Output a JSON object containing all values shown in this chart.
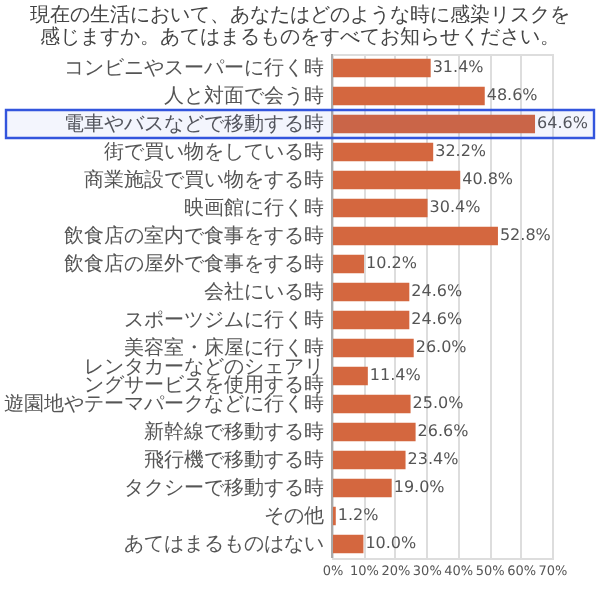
{
  "chart_data": {
    "type": "bar",
    "orientation": "horizontal",
    "title": "現在の生活において、あなたはどのような時に感染リスクを感じますか。あてはまるものをすべてお知らせください。",
    "categories": [
      "コンビニやスーパーに行く時",
      "人と対面で会う時",
      "電車やバスなどで移動する時",
      "街で買い物をしている時",
      "商業施設で買い物をする時",
      "映画館に行く時",
      "飲食店の室内で食事をする時",
      "飲食店の屋外で食事をする時",
      "会社にいる時",
      "スポーツジムに行く時",
      "美容室・床屋に行く時",
      "レンタカーなどのシェアリングサービスを使用する時",
      "遊園地やテーマパークなどに行く時",
      "新幹線で移動する時",
      "飛行機で移動する時",
      "タクシーで移動する時",
      "その他",
      "あてはまるものはない"
    ],
    "values": [
      31.4,
      48.6,
      64.6,
      32.2,
      40.8,
      30.4,
      52.8,
      10.2,
      24.6,
      24.6,
      26.0,
      11.4,
      25.0,
      26.6,
      23.4,
      19.0,
      1.2,
      10.0
    ],
    "value_labels": [
      "31.4%",
      "48.6%",
      "64.6%",
      "32.2%",
      "40.8%",
      "30.4%",
      "52.8%",
      "10.2%",
      "24.6%",
      "24.6%",
      "26.0%",
      "11.4%",
      "25.0%",
      "26.6%",
      "23.4%",
      "19.0%",
      "1.2%",
      "10.0%"
    ],
    "color": "#d4673f",
    "xlim": [
      0,
      70
    ],
    "xticks": [
      {
        "value": 0,
        "label": "0%"
      },
      {
        "value": 10,
        "label": "10%"
      },
      {
        "value": 20,
        "label": "20%"
      },
      {
        "value": 30,
        "label": "30%"
      },
      {
        "value": 40,
        "label": "40%"
      },
      {
        "value": 50,
        "label": "50%"
      },
      {
        "value": 60,
        "label": "60%"
      },
      {
        "value": 70,
        "label": "70%"
      }
    ],
    "grid": "x",
    "bands": [
      {
        "axis": "y",
        "from": "電車やバスなどで移動する時",
        "to": "電車やバスなどで移動する時",
        "color": "#3355dd"
      }
    ]
  }
}
